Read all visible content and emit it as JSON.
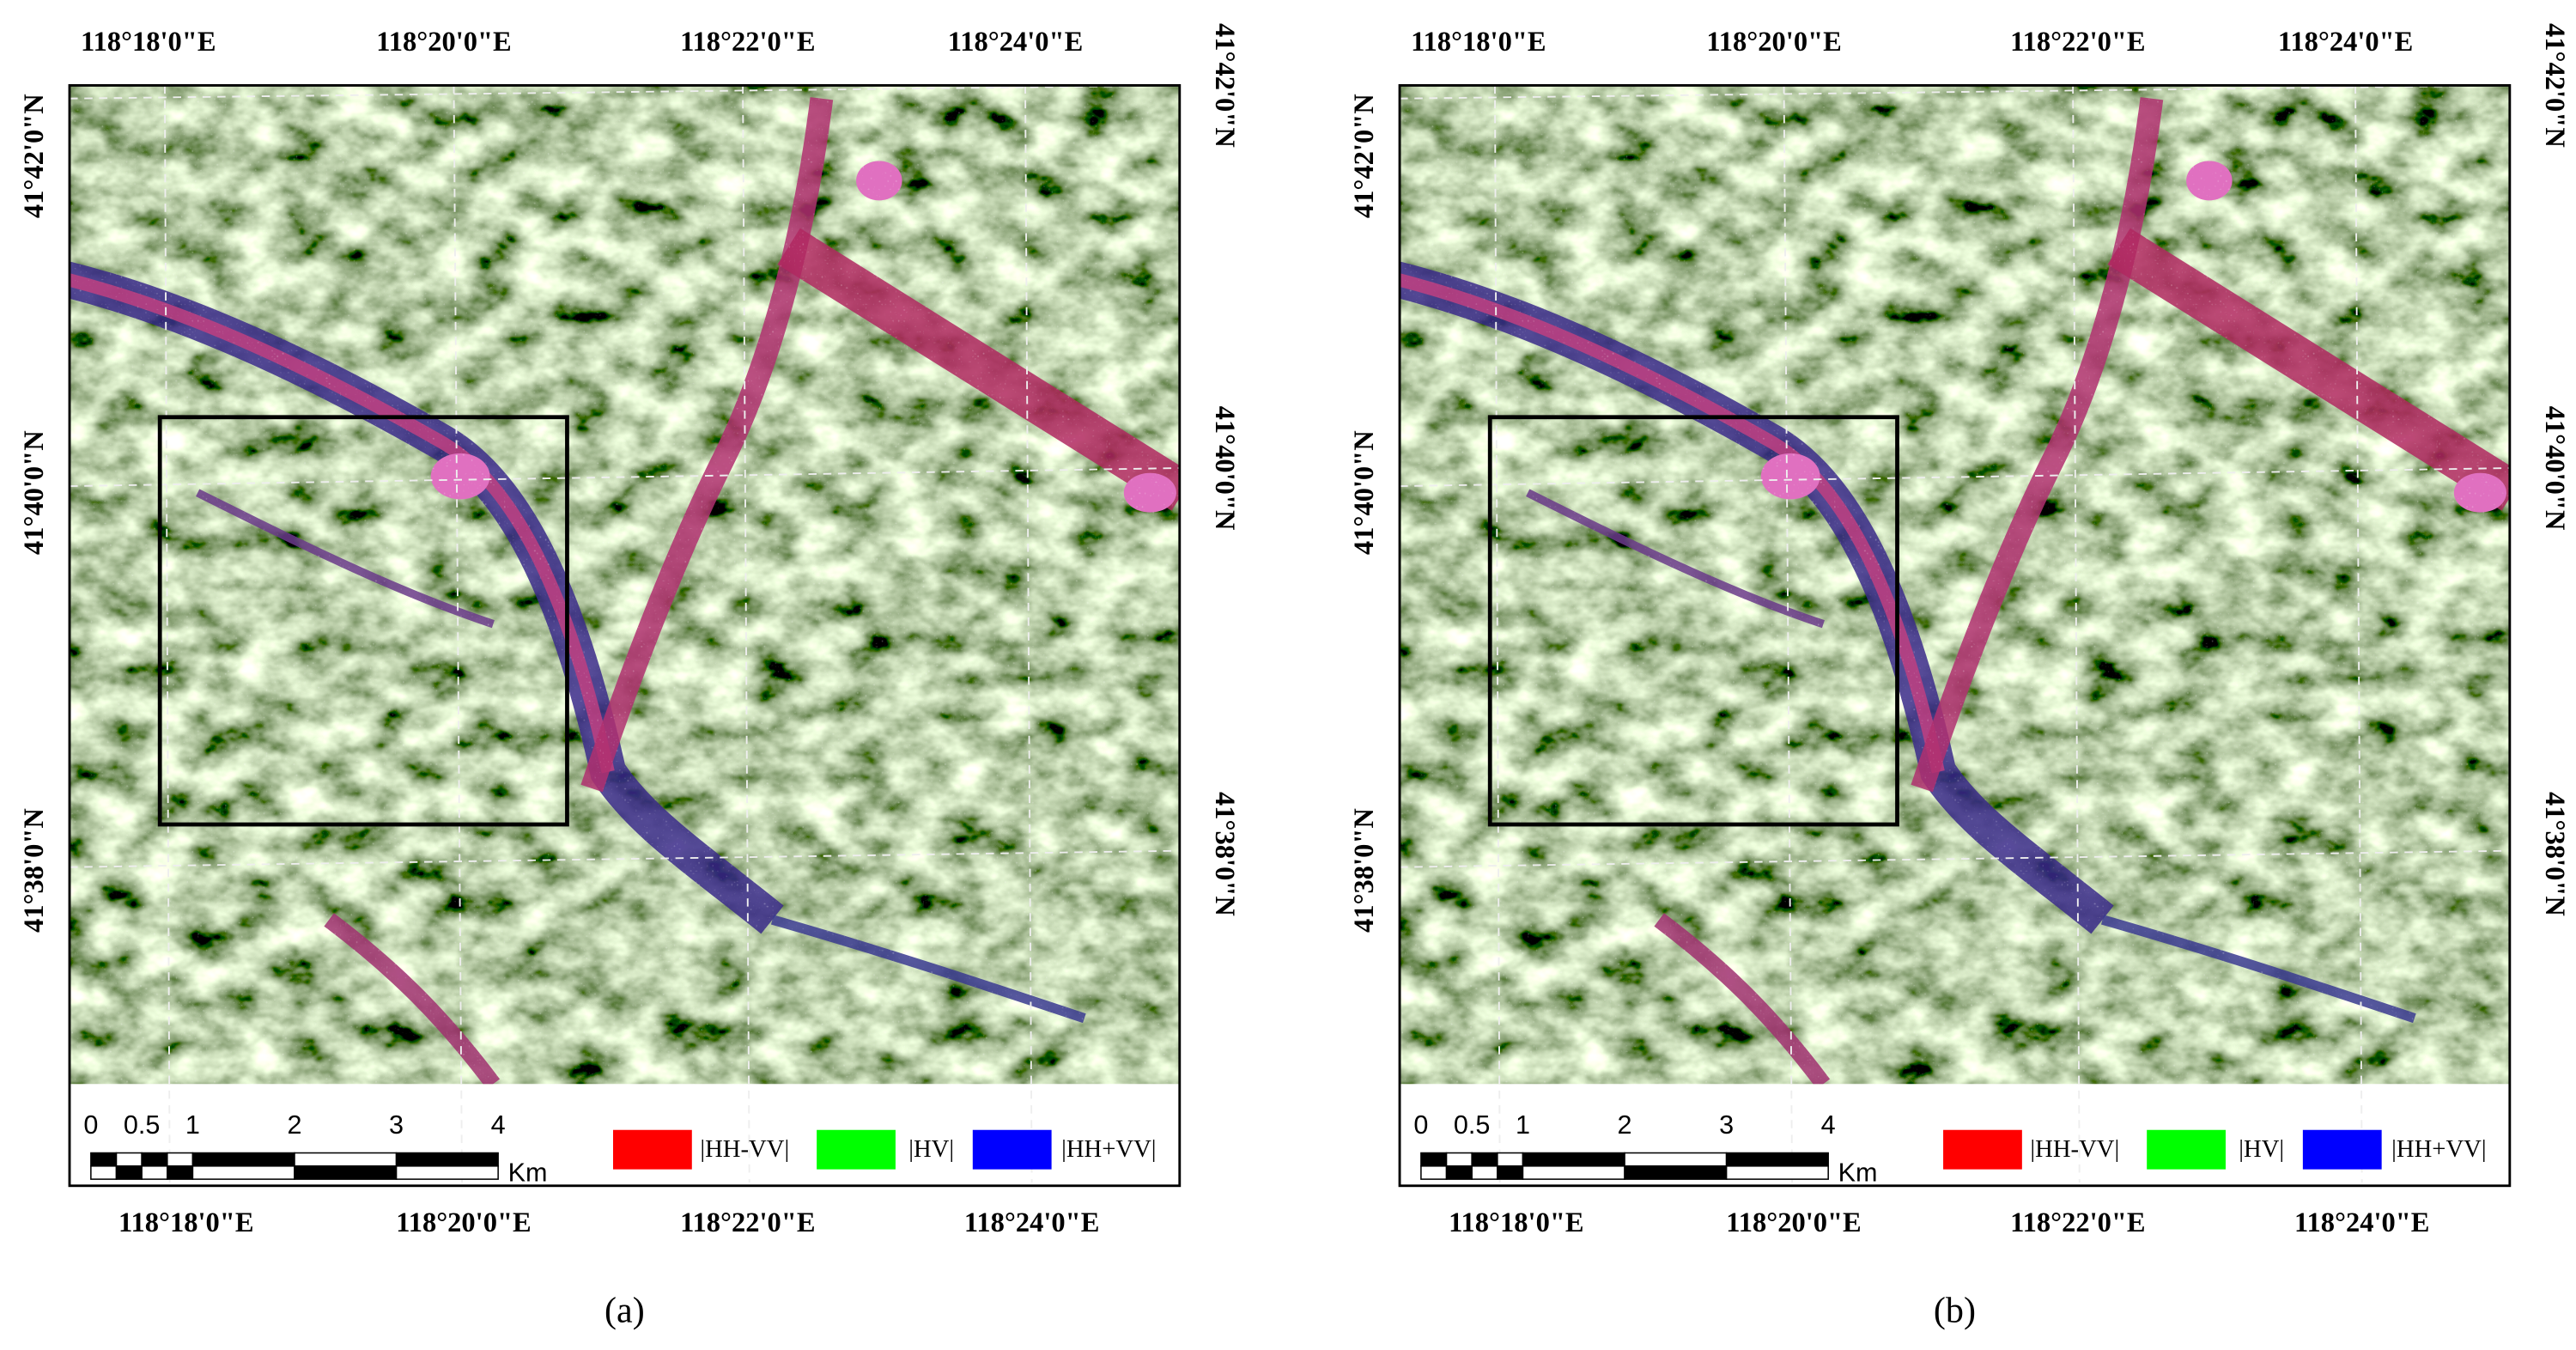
{
  "panels": [
    {
      "label": "(a)",
      "top_labels": [
        "118°18'0\"E",
        "118°20'0\"E",
        "118°22'0\"E",
        "118°24'0\"E"
      ],
      "bottom_labels": [
        "118°18'0\"E",
        "118°20'0\"E",
        "118°22'0\"E",
        "118°24'0\"E"
      ],
      "left_labels": [
        "41°42'0\"N",
        "41°40'0\"N",
        "41°38'0\"N"
      ],
      "right_labels": [
        "41°42'0\"N",
        "41°40'0\"N",
        "41°38'0\"N"
      ],
      "scale_labels": [
        0,
        0.5,
        1,
        2,
        3,
        4
      ],
      "scale_unit": "Km",
      "legend": [
        "|HH-VV|",
        "|HV|",
        "|HH+VV|"
      ]
    },
    {
      "label": "(b)",
      "top_labels": [
        "118°18'0\"E",
        "118°20'0\"E",
        "118°22'0\"E",
        "118°24'0\"E"
      ],
      "bottom_labels": [
        "118°18'0\"E",
        "118°20'0\"E",
        "118°22'0\"E",
        "118°24'0\"E"
      ],
      "left_labels": [
        "41°42'0\"N",
        "41°40'0\"N",
        "41°38'0\"N"
      ],
      "right_labels": [
        "41°42'0\"N",
        "41°40'0\"N",
        "41°38'0\"N"
      ],
      "scale_labels": [
        0,
        0.5,
        1,
        2,
        3,
        4
      ],
      "scale_unit": "Km",
      "legend": [
        "|HH-VV|",
        "|HV|",
        "|HH+VV|"
      ]
    }
  ]
}
